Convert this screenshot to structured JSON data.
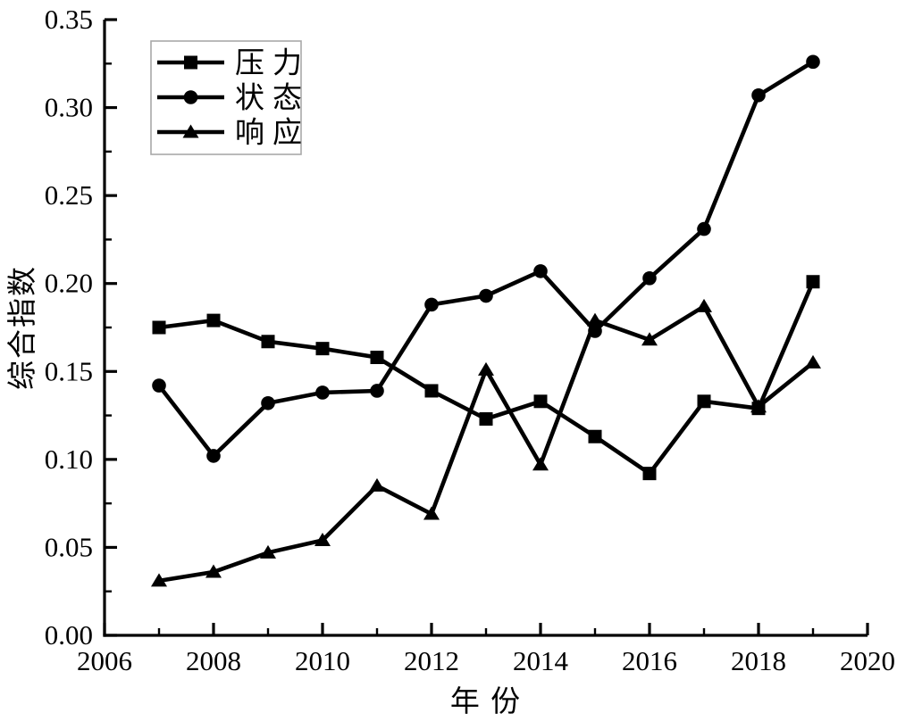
{
  "chart_data": {
    "type": "line",
    "title": "",
    "xlabel": "年 份",
    "ylabel": "综合指数",
    "x": [
      2007,
      2008,
      2009,
      2010,
      2011,
      2012,
      2013,
      2014,
      2015,
      2016,
      2017,
      2018,
      2019
    ],
    "series": [
      {
        "name": "压力",
        "marker": "square",
        "values": [
          0.175,
          0.179,
          0.167,
          0.163,
          0.158,
          0.139,
          0.123,
          0.133,
          0.113,
          0.092,
          0.133,
          0.129,
          0.201
        ]
      },
      {
        "name": "状态",
        "marker": "circle",
        "values": [
          0.142,
          0.102,
          0.132,
          0.138,
          0.139,
          0.188,
          0.193,
          0.207,
          0.173,
          0.203,
          0.231,
          0.307,
          0.326
        ]
      },
      {
        "name": "响应",
        "marker": "triangle",
        "values": [
          0.031,
          0.036,
          0.047,
          0.054,
          0.085,
          0.069,
          0.151,
          0.097,
          0.179,
          0.168,
          0.187,
          0.13,
          0.155
        ]
      }
    ],
    "xlim": [
      2006,
      2020
    ],
    "ylim": [
      0,
      0.35
    ],
    "xticks": [
      2006,
      2008,
      2010,
      2012,
      2014,
      2016,
      2018,
      2020
    ],
    "yticks": [
      0.0,
      0.05,
      0.1,
      0.15,
      0.2,
      0.25,
      0.3,
      0.35
    ],
    "y_tick_decimals": 2,
    "x_minor_years": [
      2007,
      2009,
      2011,
      2013,
      2015,
      2017,
      2019
    ],
    "y_minor_step": 0.025,
    "grid": false,
    "legend_position": "top-left",
    "line_color": "#000000",
    "axis_color": "#000000",
    "legend_border_color": "#a8a8a8",
    "background_color": "#ffffff"
  }
}
